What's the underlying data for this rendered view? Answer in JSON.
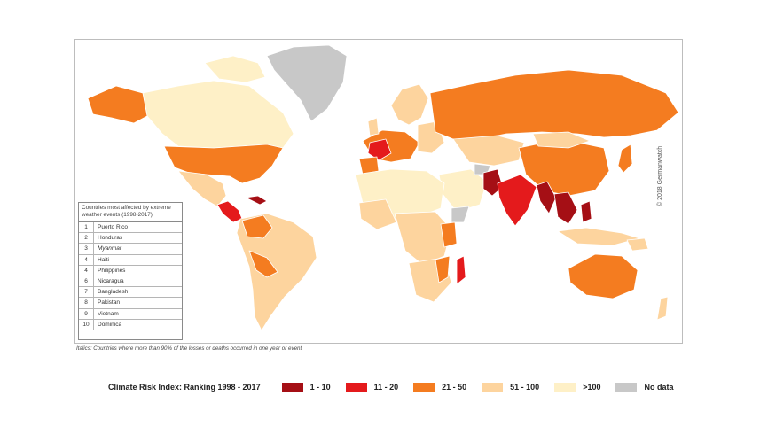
{
  "colors": {
    "rank_1_10": "#a50f15",
    "rank_11_20": "#e41a1c",
    "rank_21_50": "#f47c20",
    "rank_51_100": "#fdd49e",
    "rank_gt_100": "#fef0c7",
    "no_data": "#c8c8c8",
    "ocean": "#ffffff"
  },
  "copyright": "© 2018 Germanwatch",
  "top10": {
    "title": "Countries most affected by extreme weather events (1998-2017)",
    "rows": [
      {
        "rank": "1",
        "country": "Puerto Rico",
        "italic": false
      },
      {
        "rank": "2",
        "country": "Honduras",
        "italic": false
      },
      {
        "rank": "3",
        "country": "Myanmar",
        "italic": true
      },
      {
        "rank": "4",
        "country": "Haiti",
        "italic": false
      },
      {
        "rank": "4",
        "country": "Philippines",
        "italic": false
      },
      {
        "rank": "6",
        "country": "Nicaragua",
        "italic": false
      },
      {
        "rank": "7",
        "country": "Bangladesh",
        "italic": false
      },
      {
        "rank": "8",
        "country": "Pakistan",
        "italic": false
      },
      {
        "rank": "9",
        "country": "Vietnam",
        "italic": false
      },
      {
        "rank": "10",
        "country": "Dominica",
        "italic": false
      }
    ]
  },
  "footnote": "Italics: Countries where more than 90% of the losses or deaths occurred in one year or event",
  "legend": {
    "title": "Climate Risk Index: Ranking 1998 - 2017",
    "items": [
      {
        "label": "1 - 10",
        "color": "#a50f15"
      },
      {
        "label": "11 - 20",
        "color": "#e41a1c"
      },
      {
        "label": "21 - 50",
        "color": "#f47c20"
      },
      {
        "label": "51 - 100",
        "color": "#fdd49e"
      },
      {
        "label": ">100",
        "color": "#fef0c7"
      },
      {
        "label": "No data",
        "color": "#c8c8c8"
      }
    ]
  }
}
